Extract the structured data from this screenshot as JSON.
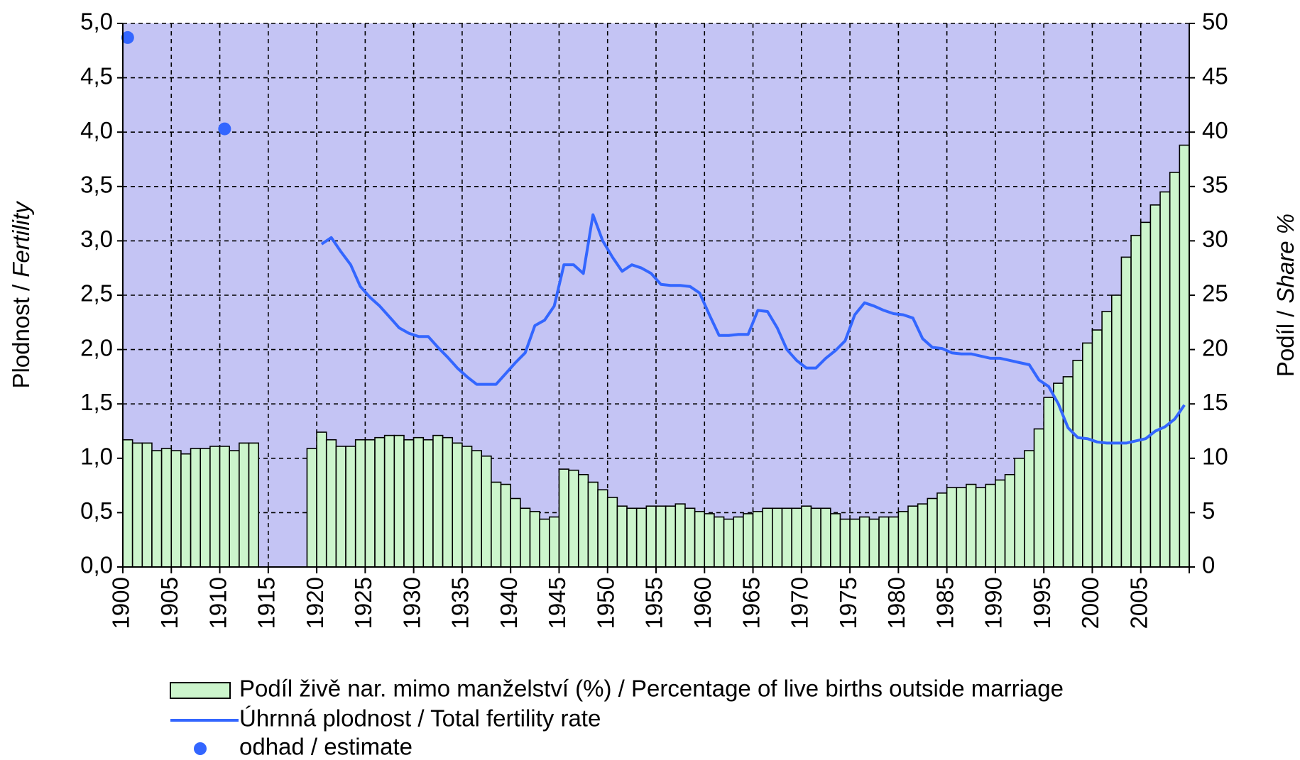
{
  "chart_data": {
    "type": "combo",
    "y_label_parts": [
      "Plodnost /",
      "Fertility"
    ],
    "y2_label_parts": [
      "Podíl /",
      "Share %"
    ],
    "x": [
      1900,
      1901,
      1902,
      1903,
      1904,
      1905,
      1906,
      1907,
      1908,
      1909,
      1910,
      1911,
      1912,
      1913,
      1914,
      1915,
      1916,
      1917,
      1918,
      1919,
      1920,
      1921,
      1922,
      1923,
      1924,
      1925,
      1926,
      1927,
      1928,
      1929,
      1930,
      1931,
      1932,
      1933,
      1934,
      1935,
      1936,
      1937,
      1938,
      1939,
      1940,
      1941,
      1942,
      1943,
      1944,
      1945,
      1946,
      1947,
      1948,
      1949,
      1950,
      1951,
      1952,
      1953,
      1954,
      1955,
      1956,
      1957,
      1958,
      1959,
      1960,
      1961,
      1962,
      1963,
      1964,
      1965,
      1966,
      1967,
      1968,
      1969,
      1970,
      1971,
      1972,
      1973,
      1974,
      1975,
      1976,
      1977,
      1978,
      1979,
      1980,
      1981,
      1982,
      1983,
      1984,
      1985,
      1986,
      1987,
      1988,
      1989,
      1990,
      1991,
      1992,
      1993,
      1994,
      1995,
      1996,
      1997,
      1998,
      1999,
      2000,
      2001,
      2002,
      2003,
      2004,
      2005,
      2006,
      2007,
      2008,
      2009
    ],
    "xlim": [
      1900,
      2010
    ],
    "xticks": [
      1900,
      1905,
      1910,
      1915,
      1920,
      1925,
      1930,
      1935,
      1940,
      1945,
      1950,
      1955,
      1960,
      1965,
      1970,
      1975,
      1980,
      1985,
      1990,
      1995,
      2000,
      2005
    ],
    "ylim": [
      0,
      5
    ],
    "yticks": [
      {
        "value": 0,
        "label": "0,0"
      },
      {
        "value": 0.5,
        "label": "0,5"
      },
      {
        "value": 1,
        "label": "1,0"
      },
      {
        "value": 1.5,
        "label": "1,5"
      },
      {
        "value": 2,
        "label": "2,0"
      },
      {
        "value": 2.5,
        "label": "2,5"
      },
      {
        "value": 3,
        "label": "3,0"
      },
      {
        "value": 3.5,
        "label": "3,5"
      },
      {
        "value": 4,
        "label": "4,0"
      },
      {
        "value": 4.5,
        "label": "4,5"
      },
      {
        "value": 5,
        "label": "5,0"
      }
    ],
    "y2lim": [
      0,
      50
    ],
    "y2ticks": [
      0,
      5,
      10,
      15,
      20,
      25,
      30,
      35,
      40,
      45,
      50
    ],
    "grid": true,
    "series": [
      {
        "name": "Podíl živě nar. mimo manželství (%) / Percentage of live births outside marriage",
        "type": "bar",
        "axis": "y2",
        "color": "#ccf5cc",
        "values": [
          11.7,
          11.4,
          11.4,
          10.7,
          10.9,
          10.7,
          10.4,
          10.9,
          10.9,
          11.1,
          11.1,
          10.7,
          11.4,
          11.4,
          null,
          null,
          null,
          null,
          null,
          10.9,
          12.4,
          11.7,
          11.1,
          11.1,
          11.7,
          11.7,
          11.9,
          12.1,
          12.1,
          11.7,
          11.9,
          11.7,
          12.1,
          11.9,
          11.4,
          11.1,
          10.7,
          10.2,
          7.8,
          7.6,
          6.3,
          5.4,
          5.1,
          4.4,
          4.6,
          9.0,
          8.9,
          8.5,
          7.8,
          7.1,
          6.4,
          5.6,
          5.4,
          5.4,
          5.6,
          5.6,
          5.6,
          5.8,
          5.4,
          5.1,
          4.9,
          4.6,
          4.4,
          4.6,
          4.9,
          5.1,
          5.4,
          5.4,
          5.4,
          5.4,
          5.6,
          5.4,
          5.4,
          4.9,
          4.4,
          4.4,
          4.6,
          4.4,
          4.6,
          4.6,
          5.1,
          5.6,
          5.8,
          6.3,
          6.8,
          7.3,
          7.3,
          7.6,
          7.3,
          7.6,
          8.0,
          8.5,
          10.0,
          10.7,
          12.7,
          15.6,
          16.9,
          17.5,
          19.0,
          20.6,
          21.8,
          23.5,
          25.0,
          28.5,
          30.5,
          31.7,
          33.3,
          34.5,
          36.3,
          38.8
        ]
      },
      {
        "name": "Úhrnná plodnost / Total fertility rate",
        "type": "line",
        "color": "#3366ff",
        "values": [
          null,
          null,
          null,
          null,
          null,
          null,
          null,
          null,
          null,
          null,
          null,
          null,
          null,
          null,
          null,
          null,
          null,
          null,
          null,
          null,
          2.97,
          3.03,
          2.9,
          2.78,
          2.58,
          2.48,
          2.4,
          2.3,
          2.2,
          2.15,
          2.12,
          2.12,
          2.02,
          1.93,
          1.83,
          1.75,
          1.68,
          1.68,
          1.68,
          1.78,
          1.88,
          1.97,
          2.22,
          2.27,
          2.4,
          2.78,
          2.78,
          2.7,
          3.24,
          3.0,
          2.85,
          2.72,
          2.78,
          2.75,
          2.7,
          2.6,
          2.59,
          2.59,
          2.58,
          2.52,
          2.32,
          2.13,
          2.13,
          2.14,
          2.14,
          2.36,
          2.35,
          2.2,
          2.0,
          1.9,
          1.83,
          1.83,
          1.92,
          1.99,
          2.08,
          2.32,
          2.43,
          2.4,
          2.36,
          2.33,
          2.32,
          2.29,
          2.1,
          2.02,
          2.01,
          1.97,
          1.96,
          1.96,
          1.94,
          1.92,
          1.92,
          1.9,
          1.88,
          1.86,
          1.72,
          1.66,
          1.5,
          1.28,
          1.19,
          1.18,
          1.15,
          1.14,
          1.14,
          1.14,
          1.16,
          1.18,
          1.25,
          1.29,
          1.36,
          1.49
        ]
      },
      {
        "name": "odhad / estimate",
        "type": "scatter",
        "color": "#3366ff",
        "x": [
          1900,
          1910
        ],
        "values": [
          4.87,
          4.03
        ]
      }
    ]
  }
}
